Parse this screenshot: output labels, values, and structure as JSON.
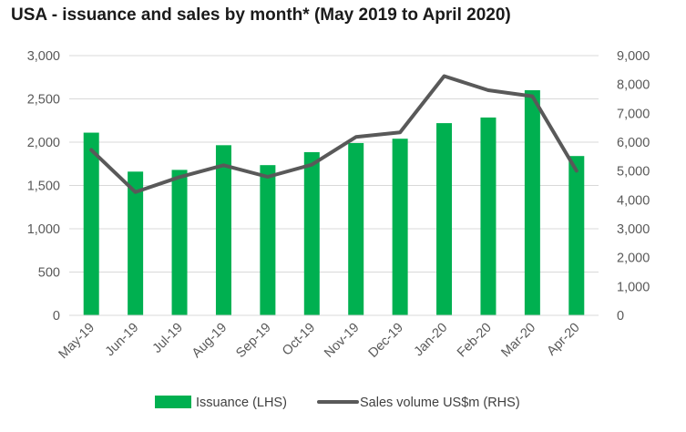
{
  "chart_data": {
    "type": "bar",
    "title": "USA - issuance and sales by month* (May 2019 to April 2020)",
    "categories": [
      "May-19",
      "Jun-19",
      "Jul-19",
      "Aug-19",
      "Sep-19",
      "Oct-19",
      "Nov-19",
      "Dec-19",
      "Jan-20",
      "Feb-20",
      "Mar-20",
      "Apr-20"
    ],
    "series": [
      {
        "name": "Issuance (LHS)",
        "type": "bar",
        "axis": "left",
        "color": "#00b050",
        "values": [
          2110,
          1660,
          1680,
          1965,
          1735,
          1885,
          1990,
          2040,
          2220,
          2285,
          2600,
          1840
        ]
      },
      {
        "name": "Sales volume US$m (RHS)",
        "type": "line",
        "axis": "right",
        "color": "#595959",
        "values": [
          5730,
          4270,
          4790,
          5200,
          4800,
          5220,
          6180,
          6340,
          8290,
          7800,
          7590,
          5010
        ]
      }
    ],
    "left_axis": {
      "ylim": [
        0,
        3000
      ],
      "ticks": [
        0,
        500,
        1000,
        1500,
        2000,
        2500,
        3000
      ],
      "tick_labels": [
        "0",
        "500",
        "1,000",
        "1,500",
        "2,000",
        "2,500",
        "3,000"
      ]
    },
    "right_axis": {
      "ylim": [
        0,
        9000
      ],
      "ticks": [
        0,
        1000,
        2000,
        3000,
        4000,
        5000,
        6000,
        7000,
        8000,
        9000
      ],
      "tick_labels": [
        "0",
        "1,000",
        "2,000",
        "3,000",
        "4,000",
        "5,000",
        "6,000",
        "7,000",
        "8,000",
        "9,000"
      ]
    },
    "grid": true,
    "gridline_color": "#d9d9d9",
    "legend_position": "bottom"
  }
}
